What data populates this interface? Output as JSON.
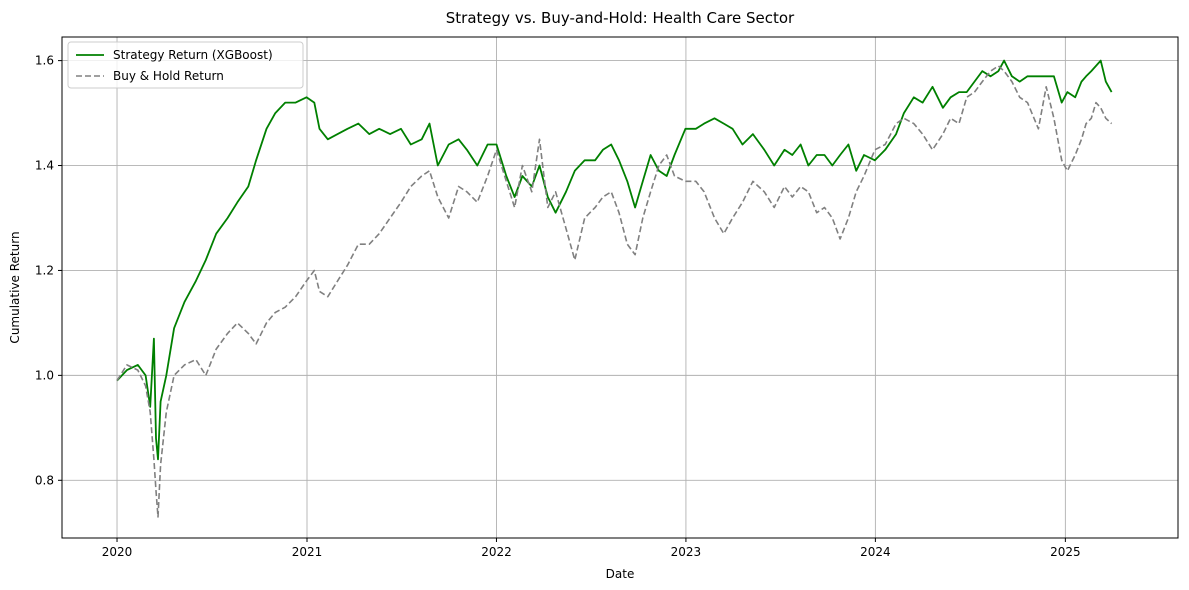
{
  "chart_data": {
    "type": "line",
    "title": "Strategy vs. Buy-and-Hold: Health Care Sector",
    "xlabel": "Date",
    "ylabel": "Cumulative Return",
    "xlim": [
      "2019-09-17",
      "2025-08-06"
    ],
    "ylim": [
      0.69,
      1.645
    ],
    "x_ticks": [
      "2020-01-01",
      "2021-01-01",
      "2022-01-01",
      "2023-01-01",
      "2024-01-01",
      "2025-01-01"
    ],
    "x_tick_labels": [
      "2020",
      "2021",
      "2022",
      "2023",
      "2024",
      "2025"
    ],
    "y_ticks": [
      0.8,
      1.0,
      1.2,
      1.4,
      1.6
    ],
    "y_tick_labels": [
      "0.8",
      "1.0",
      "1.2",
      "1.4",
      "1.6"
    ],
    "grid": true,
    "legend": "top-left",
    "series": [
      {
        "name": "Strategy Return (XGBoost)",
        "color": "#008000",
        "style": "solid",
        "x": [
          "2020-01-01",
          "2020-01-20",
          "2020-02-10",
          "2020-02-25",
          "2020-03-05",
          "2020-03-12",
          "2020-03-16",
          "2020-03-20",
          "2020-03-25",
          "2020-04-05",
          "2020-04-20",
          "2020-05-10",
          "2020-06-01",
          "2020-06-20",
          "2020-07-10",
          "2020-08-01",
          "2020-08-20",
          "2020-09-10",
          "2020-09-25",
          "2020-10-15",
          "2020-11-01",
          "2020-11-20",
          "2020-12-10",
          "2020-12-31",
          "2021-01-15",
          "2021-01-25",
          "2021-02-10",
          "2021-03-01",
          "2021-03-20",
          "2021-04-10",
          "2021-05-01",
          "2021-05-20",
          "2021-06-10",
          "2021-07-01",
          "2021-07-20",
          "2021-08-10",
          "2021-08-25",
          "2021-09-10",
          "2021-10-01",
          "2021-10-20",
          "2021-11-05",
          "2021-11-25",
          "2021-12-15",
          "2022-01-01",
          "2022-01-20",
          "2022-02-05",
          "2022-02-20",
          "2022-03-10",
          "2022-03-25",
          "2022-04-10",
          "2022-04-25",
          "2022-05-15",
          "2022-06-01",
          "2022-06-20",
          "2022-07-10",
          "2022-07-25",
          "2022-08-10",
          "2022-08-25",
          "2022-09-10",
          "2022-09-25",
          "2022-10-10",
          "2022-10-25",
          "2022-11-10",
          "2022-11-25",
          "2022-12-10",
          "2022-12-31",
          "2023-01-20",
          "2023-02-05",
          "2023-02-25",
          "2023-03-15",
          "2023-04-01",
          "2023-04-20",
          "2023-05-10",
          "2023-06-01",
          "2023-06-20",
          "2023-07-10",
          "2023-07-25",
          "2023-08-10",
          "2023-08-25",
          "2023-09-10",
          "2023-09-25",
          "2023-10-10",
          "2023-10-25",
          "2023-11-10",
          "2023-11-25",
          "2023-12-10",
          "2023-12-31",
          "2024-01-20",
          "2024-02-10",
          "2024-02-25",
          "2024-03-15",
          "2024-04-01",
          "2024-04-20",
          "2024-05-10",
          "2024-05-25",
          "2024-06-10",
          "2024-06-25",
          "2024-07-10",
          "2024-07-25",
          "2024-08-10",
          "2024-08-25",
          "2024-09-05",
          "2024-09-20",
          "2024-10-05",
          "2024-10-20",
          "2024-11-10",
          "2024-11-25",
          "2024-12-10",
          "2024-12-25",
          "2025-01-05",
          "2025-01-20",
          "2025-02-01",
          "2025-02-10",
          "2025-02-20",
          "2025-03-01",
          "2025-03-10",
          "2025-03-20",
          "2025-03-31"
        ],
        "values": [
          0.99,
          1.01,
          1.02,
          1.0,
          0.94,
          1.07,
          0.88,
          0.84,
          0.95,
          1.0,
          1.09,
          1.14,
          1.18,
          1.22,
          1.27,
          1.3,
          1.33,
          1.36,
          1.41,
          1.47,
          1.5,
          1.52,
          1.52,
          1.53,
          1.52,
          1.47,
          1.45,
          1.46,
          1.47,
          1.48,
          1.46,
          1.47,
          1.46,
          1.47,
          1.44,
          1.45,
          1.48,
          1.4,
          1.44,
          1.45,
          1.43,
          1.4,
          1.44,
          1.44,
          1.38,
          1.34,
          1.38,
          1.36,
          1.4,
          1.34,
          1.31,
          1.35,
          1.39,
          1.41,
          1.41,
          1.43,
          1.44,
          1.41,
          1.37,
          1.32,
          1.37,
          1.42,
          1.39,
          1.38,
          1.42,
          1.47,
          1.47,
          1.48,
          1.49,
          1.48,
          1.47,
          1.44,
          1.46,
          1.43,
          1.4,
          1.43,
          1.42,
          1.44,
          1.4,
          1.42,
          1.42,
          1.4,
          1.42,
          1.44,
          1.39,
          1.42,
          1.41,
          1.43,
          1.46,
          1.5,
          1.53,
          1.52,
          1.55,
          1.51,
          1.53,
          1.54,
          1.54,
          1.56,
          1.58,
          1.57,
          1.58,
          1.6,
          1.57,
          1.56,
          1.57,
          1.57,
          1.57,
          1.57,
          1.52,
          1.54,
          1.53,
          1.56,
          1.57,
          1.58,
          1.59,
          1.6,
          1.56,
          1.54
        ]
      },
      {
        "name": "Buy & Hold Return",
        "color": "#808080",
        "style": "dashed",
        "x": [
          "2020-01-01",
          "2020-01-20",
          "2020-02-10",
          "2020-02-25",
          "2020-03-05",
          "2020-03-12",
          "2020-03-16",
          "2020-03-20",
          "2020-03-25",
          "2020-04-05",
          "2020-04-20",
          "2020-05-10",
          "2020-06-01",
          "2020-06-20",
          "2020-07-10",
          "2020-08-01",
          "2020-08-20",
          "2020-09-10",
          "2020-09-25",
          "2020-10-15",
          "2020-11-01",
          "2020-11-20",
          "2020-12-10",
          "2020-12-31",
          "2021-01-15",
          "2021-01-25",
          "2021-02-10",
          "2021-03-01",
          "2021-03-20",
          "2021-04-10",
          "2021-05-01",
          "2021-05-20",
          "2021-06-10",
          "2021-07-01",
          "2021-07-20",
          "2021-08-10",
          "2021-08-25",
          "2021-09-10",
          "2021-10-01",
          "2021-10-20",
          "2021-11-05",
          "2021-11-25",
          "2021-12-15",
          "2022-01-01",
          "2022-01-20",
          "2022-02-05",
          "2022-02-20",
          "2022-03-10",
          "2022-03-25",
          "2022-04-10",
          "2022-04-25",
          "2022-05-15",
          "2022-06-01",
          "2022-06-20",
          "2022-07-10",
          "2022-07-25",
          "2022-08-10",
          "2022-08-25",
          "2022-09-10",
          "2022-09-25",
          "2022-10-10",
          "2022-10-25",
          "2022-11-10",
          "2022-11-25",
          "2022-12-10",
          "2022-12-31",
          "2023-01-20",
          "2023-02-05",
          "2023-02-25",
          "2023-03-15",
          "2023-04-01",
          "2023-04-20",
          "2023-05-10",
          "2023-06-01",
          "2023-06-20",
          "2023-07-10",
          "2023-07-25",
          "2023-08-10",
          "2023-08-25",
          "2023-09-10",
          "2023-09-25",
          "2023-10-10",
          "2023-10-25",
          "2023-11-10",
          "2023-11-25",
          "2023-12-10",
          "2023-12-31",
          "2024-01-20",
          "2024-02-10",
          "2024-02-25",
          "2024-03-15",
          "2024-04-01",
          "2024-04-20",
          "2024-05-10",
          "2024-05-25",
          "2024-06-10",
          "2024-06-25",
          "2024-07-10",
          "2024-07-25",
          "2024-08-10",
          "2024-08-25",
          "2024-09-05",
          "2024-09-20",
          "2024-10-05",
          "2024-10-20",
          "2024-11-10",
          "2024-11-25",
          "2024-12-10",
          "2024-12-25",
          "2025-01-05",
          "2025-01-20",
          "2025-02-01",
          "2025-02-10",
          "2025-02-20",
          "2025-03-01",
          "2025-03-10",
          "2025-03-20",
          "2025-03-31"
        ],
        "values": [
          0.99,
          1.02,
          1.01,
          0.98,
          0.93,
          0.84,
          0.78,
          0.73,
          0.83,
          0.93,
          1.0,
          1.02,
          1.03,
          1.0,
          1.05,
          1.08,
          1.1,
          1.08,
          1.06,
          1.1,
          1.12,
          1.13,
          1.15,
          1.18,
          1.2,
          1.16,
          1.15,
          1.18,
          1.21,
          1.25,
          1.25,
          1.27,
          1.3,
          1.33,
          1.36,
          1.38,
          1.39,
          1.34,
          1.3,
          1.36,
          1.35,
          1.33,
          1.38,
          1.43,
          1.37,
          1.32,
          1.4,
          1.35,
          1.45,
          1.32,
          1.35,
          1.28,
          1.22,
          1.3,
          1.32,
          1.34,
          1.35,
          1.31,
          1.25,
          1.23,
          1.3,
          1.35,
          1.4,
          1.42,
          1.38,
          1.37,
          1.37,
          1.35,
          1.3,
          1.27,
          1.3,
          1.33,
          1.37,
          1.35,
          1.32,
          1.36,
          1.34,
          1.36,
          1.35,
          1.31,
          1.32,
          1.3,
          1.26,
          1.3,
          1.35,
          1.38,
          1.43,
          1.44,
          1.48,
          1.49,
          1.48,
          1.46,
          1.43,
          1.46,
          1.49,
          1.48,
          1.53,
          1.54,
          1.56,
          1.58,
          1.59,
          1.58,
          1.56,
          1.53,
          1.52,
          1.47,
          1.55,
          1.49,
          1.41,
          1.39,
          1.42,
          1.45,
          1.48,
          1.49,
          1.52,
          1.51,
          1.49,
          1.48
        ]
      }
    ]
  }
}
